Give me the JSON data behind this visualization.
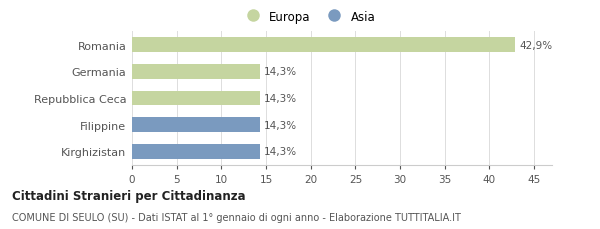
{
  "categories": [
    "Romania",
    "Germania",
    "Repubblica Ceca",
    "Filippine",
    "Kirghizistan"
  ],
  "values": [
    42.9,
    14.3,
    14.3,
    14.3,
    14.3
  ],
  "labels": [
    "42,9%",
    "14,3%",
    "14,3%",
    "14,3%",
    "14,3%"
  ],
  "colors": [
    "#c5d5a0",
    "#c5d5a0",
    "#c5d5a0",
    "#7a9abf",
    "#7a9abf"
  ],
  "legend_items": [
    {
      "label": "Europa",
      "color": "#c5d5a0"
    },
    {
      "label": "Asia",
      "color": "#7a9abf"
    }
  ],
  "xlim": [
    0,
    47
  ],
  "xticks": [
    0,
    5,
    10,
    15,
    20,
    25,
    30,
    35,
    40,
    45
  ],
  "title_bold": "Cittadini Stranieri per Cittadinanza",
  "subtitle": "COMUNE DI SEULO (SU) - Dati ISTAT al 1° gennaio di ogni anno - Elaborazione TUTTITALIA.IT",
  "background_color": "#ffffff",
  "bar_height": 0.55
}
